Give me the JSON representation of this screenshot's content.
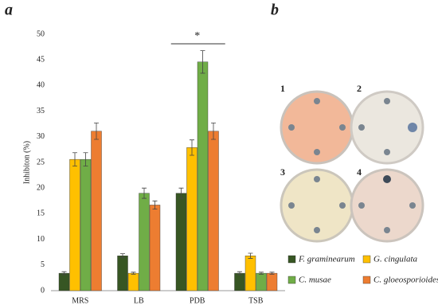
{
  "panel_labels": [
    "a",
    "b"
  ],
  "chart_data": {
    "type": "bar",
    "y_label": "Inhibiton (%)",
    "annotation": "*",
    "categories": [
      "MRS",
      "LB",
      "PDB",
      "TSB"
    ],
    "series": [
      {
        "name": "F. graminearum",
        "color": "#375623",
        "values": [
          3.4,
          6.8,
          19.0,
          3.4
        ],
        "errors": [
          0.3,
          0.4,
          1.0,
          0.3
        ]
      },
      {
        "name": "G. cingulata",
        "color": "#ffc000",
        "values": [
          25.6,
          3.4,
          27.9,
          6.8
        ],
        "errors": [
          1.3,
          0.2,
          1.5,
          0.5
        ]
      },
      {
        "name": "C. musae",
        "color": "#70ad47",
        "values": [
          25.6,
          19.0,
          44.6,
          3.4
        ],
        "errors": [
          1.3,
          1.0,
          2.2,
          0.2
        ]
      },
      {
        "name": "C. gloeosporioides",
        "color": "#ed7d31",
        "values": [
          31.1,
          16.7,
          31.1,
          3.4
        ],
        "errors": [
          1.6,
          0.8,
          1.6,
          0.2
        ]
      }
    ],
    "ylim": [
      0,
      50
    ],
    "yticks": [
      0,
      5,
      10,
      15,
      20,
      25,
      30,
      35,
      40,
      45,
      50
    ],
    "grid": false
  },
  "photo_labels": [
    "1",
    "2",
    "3",
    "4"
  ]
}
